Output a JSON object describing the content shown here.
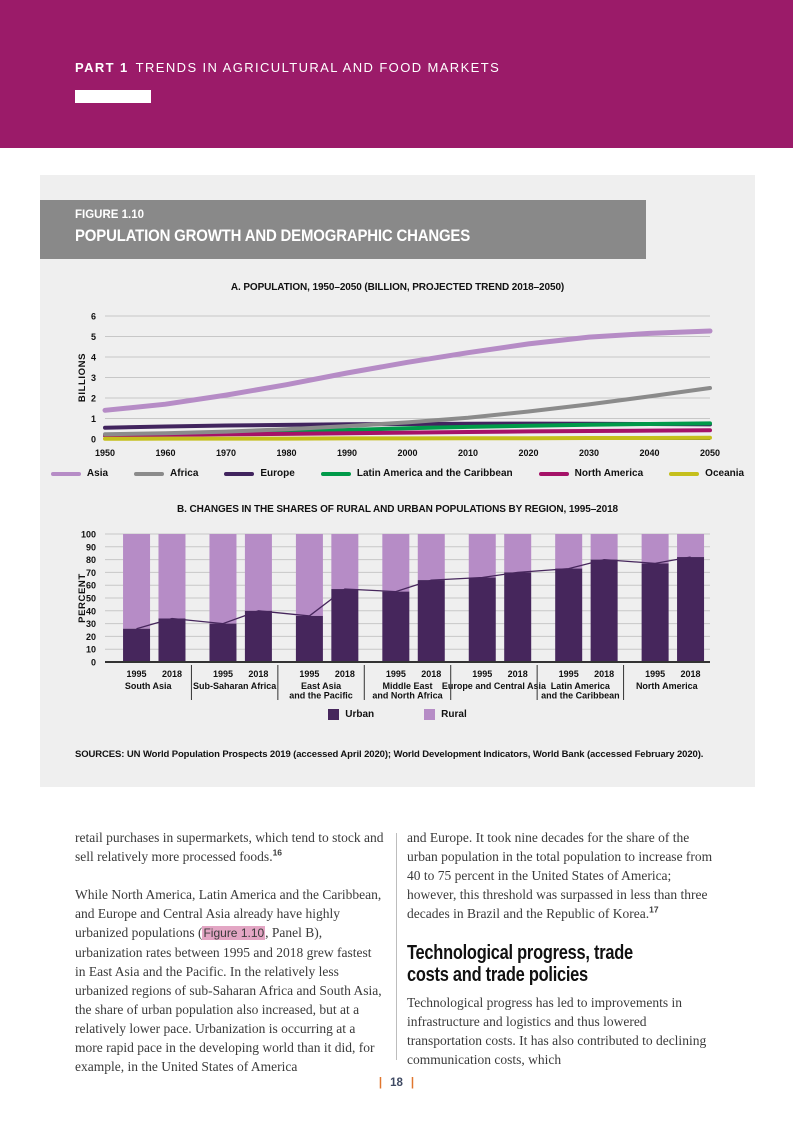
{
  "header": {
    "part_label": "PART 1",
    "part_title": "TRENDS IN AGRICULTURAL AND FOOD MARKETS"
  },
  "figure": {
    "label": "FIGURE 1.10",
    "title": "POPULATION GROWTH AND DEMOGRAPHIC CHANGES",
    "sources": "SOURCES: UN World Population Prospects 2019 (accessed April 2020); World Development Indicators, World Bank (accessed February 2020)."
  },
  "chart_data": [
    {
      "type": "line",
      "title": "A. POPULATION, 1950–2050 (BILLION, PROJECTED TREND 2018–2050)",
      "xlabel": "",
      "ylabel": "BILLIONS",
      "ylim": [
        0,
        6
      ],
      "yticks": [
        0,
        1,
        2,
        3,
        4,
        5,
        6
      ],
      "x": [
        1950,
        1960,
        1970,
        1980,
        1990,
        2000,
        2010,
        2020,
        2030,
        2040,
        2050
      ],
      "grid": true,
      "legend_position": "bottom",
      "series": [
        {
          "name": "Asia",
          "color": "#b68cc6",
          "values": [
            1.4,
            1.7,
            2.14,
            2.65,
            3.22,
            3.74,
            4.21,
            4.64,
            4.97,
            5.15,
            5.27
          ]
        },
        {
          "name": "Africa",
          "color": "#8b8b8b",
          "values": [
            0.23,
            0.28,
            0.36,
            0.48,
            0.63,
            0.81,
            1.04,
            1.34,
            1.69,
            2.08,
            2.49
          ]
        },
        {
          "name": "Europe",
          "color": "#41245e",
          "values": [
            0.55,
            0.61,
            0.66,
            0.69,
            0.72,
            0.73,
            0.74,
            0.75,
            0.74,
            0.73,
            0.71
          ]
        },
        {
          "name": "Latin America and the Caribbean",
          "color": "#009a49",
          "values": [
            0.17,
            0.22,
            0.29,
            0.36,
            0.44,
            0.52,
            0.59,
            0.65,
            0.7,
            0.73,
            0.76
          ]
        },
        {
          "name": "North America",
          "color": "#a51268",
          "values": [
            0.17,
            0.2,
            0.23,
            0.25,
            0.28,
            0.31,
            0.34,
            0.37,
            0.39,
            0.41,
            0.43
          ]
        },
        {
          "name": "Oceania",
          "color": "#c5bf1c",
          "values": [
            0.01,
            0.02,
            0.02,
            0.02,
            0.03,
            0.03,
            0.04,
            0.04,
            0.05,
            0.05,
            0.06
          ]
        }
      ]
    },
    {
      "type": "bar",
      "title": "B. CHANGES IN THE SHARES OF RURAL AND URBAN POPULATIONS BY REGION, 1995–2018",
      "xlabel": "",
      "ylabel": "PERCENT",
      "ylim": [
        0,
        100
      ],
      "yticks": [
        0,
        10,
        20,
        30,
        40,
        50,
        60,
        70,
        80,
        90,
        100
      ],
      "grid": true,
      "stacked": true,
      "trend_line": true,
      "bar_years": [
        "1995",
        "2018"
      ],
      "legend": [
        "Urban",
        "Rural"
      ],
      "urban_color": "#46265c",
      "rural_color": "#b68cc6",
      "groups": [
        {
          "region": "South Asia",
          "lines": [
            "South Asia"
          ],
          "urban": [
            26,
            34
          ],
          "rural": [
            74,
            66
          ]
        },
        {
          "region": "Sub-Saharan Africa",
          "lines": [
            "Sub-Saharan Africa"
          ],
          "urban": [
            30,
            40
          ],
          "rural": [
            70,
            60
          ]
        },
        {
          "region": "East Asia and the Pacific",
          "lines": [
            "East Asia",
            "and the Pacific"
          ],
          "urban": [
            36,
            57
          ],
          "rural": [
            64,
            43
          ]
        },
        {
          "region": "Middle East and North Africa",
          "lines": [
            "Middle East",
            "and North Africa"
          ],
          "urban": [
            55,
            64
          ],
          "rural": [
            45,
            36
          ]
        },
        {
          "region": "Europe and Central Asia",
          "lines": [
            "Europe and Central Asia"
          ],
          "urban": [
            66,
            70
          ],
          "rural": [
            34,
            30
          ]
        },
        {
          "region": "Latin America and the Caribbean",
          "lines": [
            "Latin America",
            "and the Caribbean"
          ],
          "urban": [
            73,
            80
          ],
          "rural": [
            27,
            20
          ]
        },
        {
          "region": "North America",
          "lines": [
            "North America"
          ],
          "urban": [
            77,
            82
          ],
          "rural": [
            23,
            18
          ]
        }
      ]
    }
  ],
  "body": {
    "left": {
      "p1_text": "retail purchases in supermarkets, which tend to stock and sell relatively more processed foods.",
      "p1_sup": "16",
      "p2_before": "While North America, Latin America and the Caribbean, and Europe and Central Asia already have highly urbanized populations (",
      "p2_figref": "Figure 1.10",
      "p2_after": ", Panel B), urbanization rates between 1995 and 2018 grew fastest in East Asia and the Pacific. In the relatively less urbanized regions of sub-Saharan Africa and South Asia, the share of urban population also increased, but at a relatively lower pace. Urbanization is occurring at a more rapid pace in the developing world than it did, for example, in the United States of America"
    },
    "right": {
      "p1_text": "and Europe. It took nine decades for the share of the urban population in the total population to increase from 40 to 75 percent in the United States of America; however, this threshold was surpassed in less than three decades in Brazil and the Republic of Korea.",
      "p1_sup": "17",
      "heading": "Technological progress, trade costs and trade policies",
      "p2_text": "Technological progress has led to improvements in infrastructure and logistics and thus lowered transportation costs. It has also contributed to declining communication costs, which"
    }
  },
  "footer": {
    "page_number": "18",
    "bar": "|"
  },
  "colors": {
    "part_band": "#9b1b69",
    "figure_band": "#898989",
    "panel_bg": "#efefef",
    "urban": "#46265c",
    "rural": "#b68cc6",
    "figref_highlight": "#e3a6c4",
    "footer_bar": "#e0762e"
  }
}
